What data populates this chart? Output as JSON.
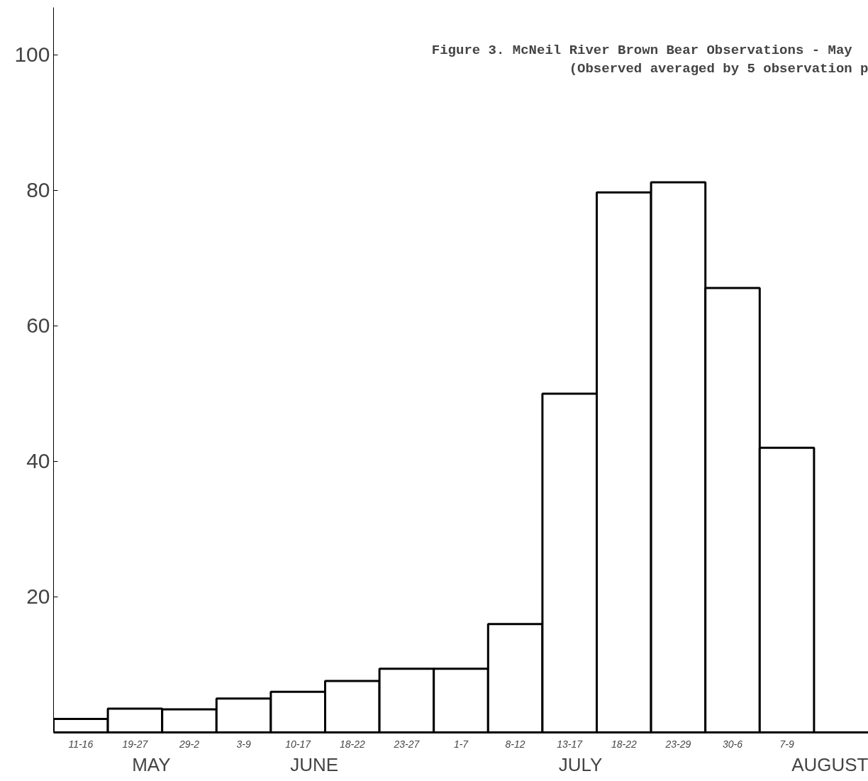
{
  "chart_data": {
    "type": "bar",
    "title": "Figure 3.   McNeil River Brown Bear Observations - May",
    "subtitle": "(Observed averaged by 5 observation p",
    "categories": [
      "11-16",
      "19-27",
      "29-2",
      "3-9",
      "10-17",
      "18-22",
      "23-27",
      "1-7",
      "8-12",
      "13-17",
      "18-22",
      "23-29",
      "30-6",
      "7-9",
      null
    ],
    "values": [
      2,
      3.5,
      3.4,
      5,
      6,
      7.6,
      9.4,
      9.4,
      16,
      50,
      79.7,
      81.2,
      65.6,
      42,
      null
    ],
    "color": "#ffffff",
    "ylim": [
      0,
      107
    ],
    "yticks": [
      20,
      40,
      60,
      80,
      100
    ],
    "annotations": [
      "MAY",
      "JUNE",
      "JULY",
      "AUGUST"
    ],
    "grid": false
  }
}
